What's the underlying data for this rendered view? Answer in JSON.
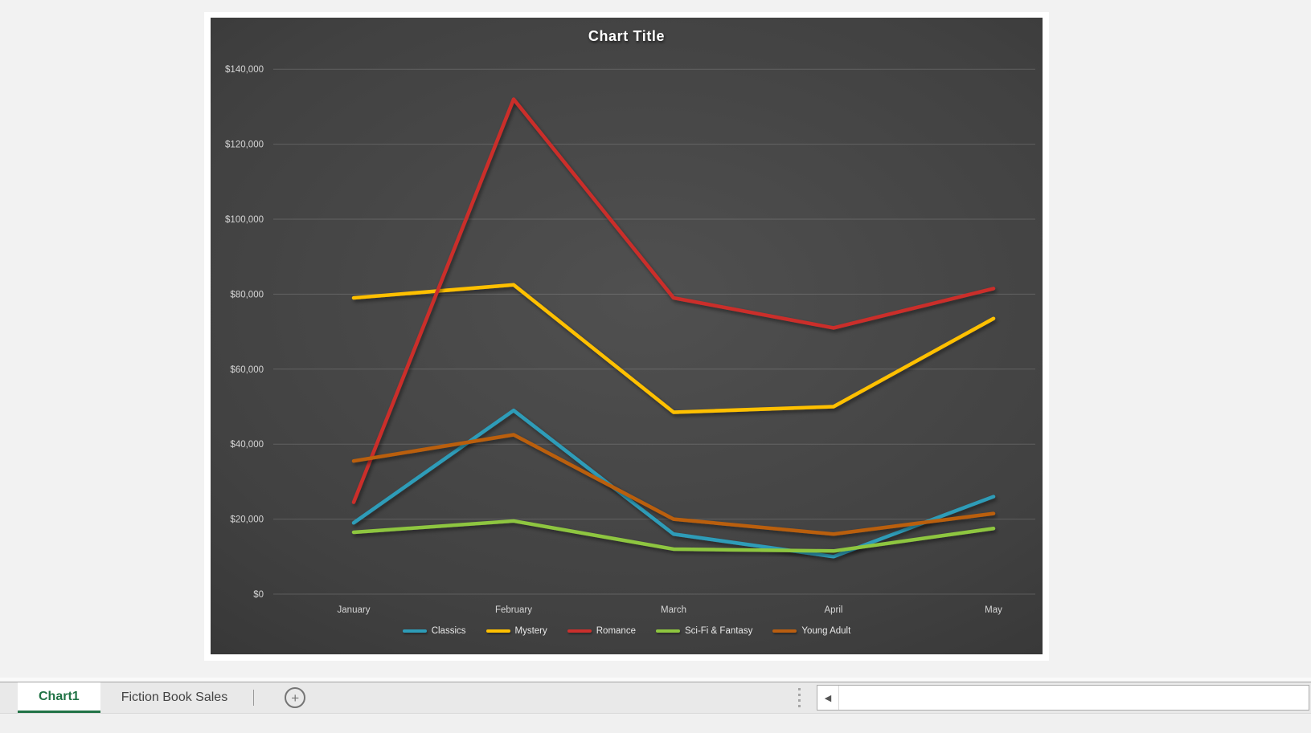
{
  "chart_data": {
    "type": "line",
    "title": "Chart Title",
    "categories": [
      "January",
      "February",
      "March",
      "April",
      "May"
    ],
    "series": [
      {
        "name": "Classics",
        "color": "#2D9CB8",
        "values": [
          19000,
          49000,
          16000,
          10000,
          26000
        ]
      },
      {
        "name": "Mystery",
        "color": "#FFC000",
        "values": [
          79000,
          82500,
          48500,
          50000,
          73500
        ]
      },
      {
        "name": "Romance",
        "color": "#CB2F2C",
        "values": [
          24500,
          132000,
          79000,
          71000,
          81500
        ]
      },
      {
        "name": "Sci-Fi & Fantasy",
        "color": "#8EC63F",
        "values": [
          16500,
          19500,
          12000,
          11500,
          17500
        ]
      },
      {
        "name": "Young Adult",
        "color": "#BA5E10",
        "values": [
          35500,
          42500,
          20000,
          16000,
          21500
        ]
      }
    ],
    "ylim": [
      0,
      140000
    ],
    "y_tick_step": 20000,
    "y_tick_labels": [
      "$0",
      "$20,000",
      "$40,000",
      "$60,000",
      "$80,000",
      "$100,000",
      "$120,000",
      "$140,000"
    ],
    "legend_position": "bottom",
    "grid": true,
    "plot_background": "dark-gray-gradient"
  },
  "sheet_tabs": {
    "tabs": [
      {
        "label": "Chart1",
        "active": true
      },
      {
        "label": "Fiction Book Sales",
        "active": false
      }
    ]
  },
  "icons": {
    "add_sheet": "+",
    "scroll_left": "◀"
  },
  "colors": {
    "excel_green": "#217346",
    "chart_text": "#D6D6D6",
    "page_background": "#F2F2F2"
  }
}
